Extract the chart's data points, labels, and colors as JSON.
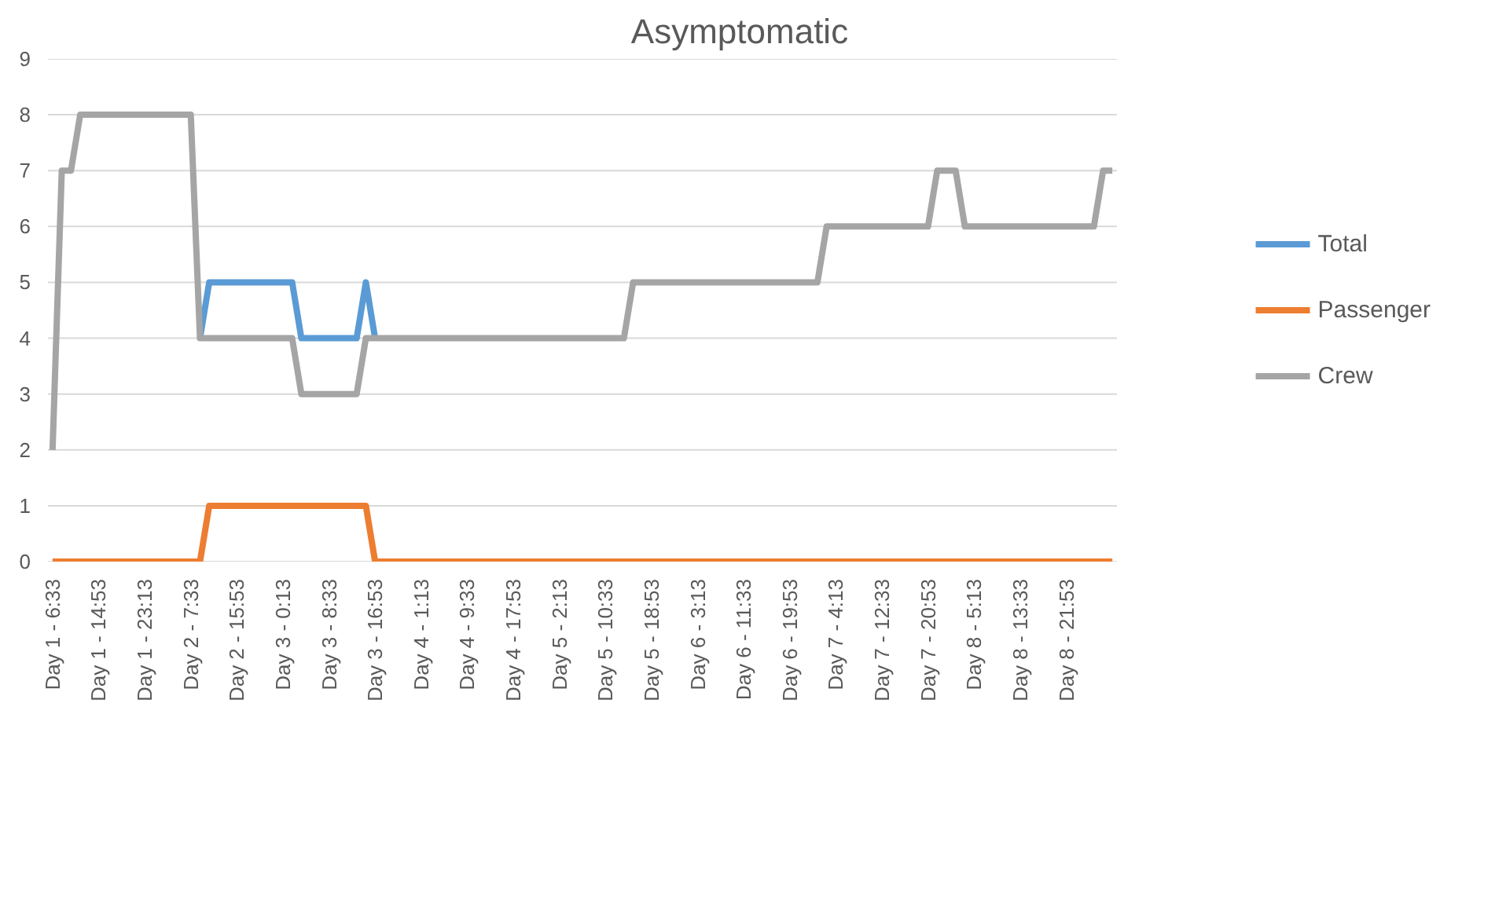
{
  "chart_data": {
    "type": "line",
    "title": "Asymptomatic",
    "categories": [
      "Day 1 - 6:33",
      null,
      null,
      null,
      null,
      "Day 1 - 14:53",
      null,
      null,
      null,
      null,
      "Day 1 - 23:13",
      null,
      null,
      null,
      null,
      "Day 2 - 7:33",
      null,
      null,
      null,
      null,
      "Day 2 - 15:53",
      null,
      null,
      null,
      null,
      "Day 3 - 0:13",
      null,
      null,
      null,
      null,
      "Day 3 - 8:33",
      null,
      null,
      null,
      null,
      "Day 3 - 16:53",
      null,
      null,
      null,
      null,
      "Day 4 - 1:13",
      null,
      null,
      null,
      null,
      "Day 4 - 9:33",
      null,
      null,
      null,
      null,
      "Day 4 - 17:53",
      null,
      null,
      null,
      null,
      "Day 5 - 2:13",
      null,
      null,
      null,
      null,
      "Day 5 - 10:33",
      null,
      null,
      null,
      null,
      "Day 5 - 18:53",
      null,
      null,
      null,
      null,
      "Day 6 - 3:13",
      null,
      null,
      null,
      null,
      "Day 6 - 11:33",
      null,
      null,
      null,
      null,
      "Day 6 - 19:53",
      null,
      null,
      null,
      null,
      "Day 7 - 4:13",
      null,
      null,
      null,
      null,
      "Day 7 - 12:33",
      null,
      null,
      null,
      null,
      "Day 7 - 20:53",
      null,
      null,
      null,
      null,
      "Day 8 - 5:13",
      null,
      null,
      null,
      null,
      "Day 8 - 13:33",
      null,
      null,
      null,
      null,
      "Day 8 - 21:53",
      null,
      null,
      null,
      null,
      null
    ],
    "series": [
      {
        "name": "Total",
        "color": "#5b9bd5",
        "values": [
          null,
          null,
          null,
          null,
          null,
          null,
          null,
          null,
          null,
          null,
          null,
          null,
          null,
          null,
          null,
          null,
          4,
          5,
          5,
          5,
          5,
          5,
          5,
          5,
          5,
          5,
          5,
          4,
          4,
          4,
          4,
          4,
          4,
          4,
          5,
          4,
          null,
          null,
          null,
          null,
          null,
          null,
          null,
          null,
          null,
          null,
          null,
          null,
          null,
          null,
          null,
          null,
          null,
          null,
          null,
          null,
          null,
          null,
          null,
          null,
          null,
          null,
          null,
          null,
          null,
          null,
          null,
          null,
          null,
          null,
          null,
          null,
          null,
          null,
          null,
          null,
          null,
          null,
          null,
          null,
          null,
          null,
          null,
          null,
          null,
          null,
          null,
          null,
          null,
          null,
          null,
          null,
          null,
          null,
          null,
          null,
          null,
          null,
          null,
          null,
          null,
          null,
          null,
          null,
          null,
          null,
          null,
          null,
          null,
          null,
          null,
          null,
          null,
          null,
          null,
          null
        ]
      },
      {
        "name": "Passenger",
        "color": "#ed7d31",
        "values": [
          0,
          0,
          0,
          0,
          0,
          0,
          0,
          0,
          0,
          0,
          0,
          0,
          0,
          0,
          0,
          0,
          0,
          1,
          1,
          1,
          1,
          1,
          1,
          1,
          1,
          1,
          1,
          1,
          1,
          1,
          1,
          1,
          1,
          1,
          1,
          0,
          0,
          0,
          0,
          0,
          0,
          0,
          0,
          0,
          0,
          0,
          0,
          0,
          0,
          0,
          0,
          0,
          0,
          0,
          0,
          0,
          0,
          0,
          0,
          0,
          0,
          0,
          0,
          0,
          0,
          0,
          0,
          0,
          0,
          0,
          0,
          0,
          0,
          0,
          0,
          0,
          0,
          0,
          0,
          0,
          0,
          0,
          0,
          0,
          0,
          0,
          0,
          0,
          0,
          0,
          0,
          0,
          0,
          0,
          0,
          0,
          0,
          0,
          0,
          0,
          0,
          0,
          0,
          0,
          0,
          0,
          0,
          0,
          0,
          0,
          0,
          0,
          0,
          0,
          0,
          0
        ]
      },
      {
        "name": "Crew",
        "color": "#a5a5a5",
        "values": [
          2,
          7,
          7,
          8,
          8,
          8,
          8,
          8,
          8,
          8,
          8,
          8,
          8,
          8,
          8,
          8,
          4,
          4,
          4,
          4,
          4,
          4,
          4,
          4,
          4,
          4,
          4,
          3,
          3,
          3,
          3,
          3,
          3,
          3,
          4,
          4,
          4,
          4,
          4,
          4,
          4,
          4,
          4,
          4,
          4,
          4,
          4,
          4,
          4,
          4,
          4,
          4,
          4,
          4,
          4,
          4,
          4,
          4,
          4,
          4,
          4,
          4,
          4,
          5,
          5,
          5,
          5,
          5,
          5,
          5,
          5,
          5,
          5,
          5,
          5,
          5,
          5,
          5,
          5,
          5,
          5,
          5,
          5,
          5,
          6,
          6,
          6,
          6,
          6,
          6,
          6,
          6,
          6,
          6,
          6,
          6,
          7,
          7,
          7,
          6,
          6,
          6,
          6,
          6,
          6,
          6,
          6,
          6,
          6,
          6,
          6,
          6,
          6,
          6,
          7,
          7
        ]
      }
    ],
    "ylim": [
      0,
      9
    ],
    "yticks": [
      0,
      1,
      2,
      3,
      4,
      5,
      6,
      7,
      8,
      9
    ],
    "grid": "y",
    "legend": "right",
    "marker": "none",
    "line_style": "solid"
  }
}
